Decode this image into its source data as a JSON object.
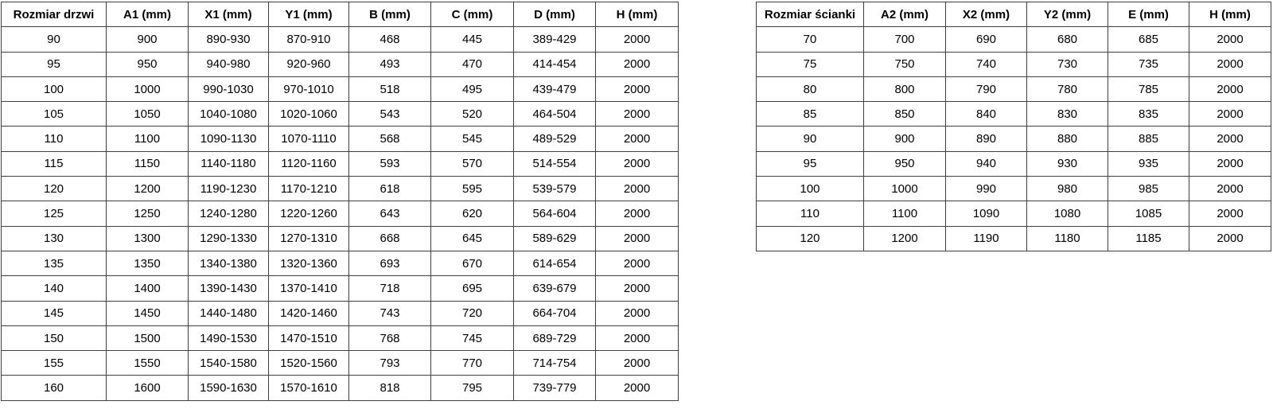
{
  "page": {
    "background_color": "#ffffff",
    "text_color": "#000000",
    "border_color": "#3f3f3f"
  },
  "door_table": {
    "headers": [
      "Rozmiar drzwi",
      "A1 (mm)",
      "X1 (mm)",
      "Y1 (mm)",
      "B (mm)",
      "C (mm)",
      "D (mm)",
      "H (mm)"
    ],
    "rows": [
      [
        "90",
        "900",
        "890-930",
        "870-910",
        "468",
        "445",
        "389-429",
        "2000"
      ],
      [
        "95",
        "950",
        "940-980",
        "920-960",
        "493",
        "470",
        "414-454",
        "2000"
      ],
      [
        "100",
        "1000",
        "990-1030",
        "970-1010",
        "518",
        "495",
        "439-479",
        "2000"
      ],
      [
        "105",
        "1050",
        "1040-1080",
        "1020-1060",
        "543",
        "520",
        "464-504",
        "2000"
      ],
      [
        "110",
        "1100",
        "1090-1130",
        "1070-1110",
        "568",
        "545",
        "489-529",
        "2000"
      ],
      [
        "115",
        "1150",
        "1140-1180",
        "1120-1160",
        "593",
        "570",
        "514-554",
        "2000"
      ],
      [
        "120",
        "1200",
        "1190-1230",
        "1170-1210",
        "618",
        "595",
        "539-579",
        "2000"
      ],
      [
        "125",
        "1250",
        "1240-1280",
        "1220-1260",
        "643",
        "620",
        "564-604",
        "2000"
      ],
      [
        "130",
        "1300",
        "1290-1330",
        "1270-1310",
        "668",
        "645",
        "589-629",
        "2000"
      ],
      [
        "135",
        "1350",
        "1340-1380",
        "1320-1360",
        "693",
        "670",
        "614-654",
        "2000"
      ],
      [
        "140",
        "1400",
        "1390-1430",
        "1370-1410",
        "718",
        "695",
        "639-679",
        "2000"
      ],
      [
        "145",
        "1450",
        "1440-1480",
        "1420-1460",
        "743",
        "720",
        "664-704",
        "2000"
      ],
      [
        "150",
        "1500",
        "1490-1530",
        "1470-1510",
        "768",
        "745",
        "689-729",
        "2000"
      ],
      [
        "155",
        "1550",
        "1540-1580",
        "1520-1560",
        "793",
        "770",
        "714-754",
        "2000"
      ],
      [
        "160",
        "1600",
        "1590-1630",
        "1570-1610",
        "818",
        "795",
        "739-779",
        "2000"
      ]
    ]
  },
  "wall_table": {
    "headers": [
      "Rozmiar ścianki",
      "A2 (mm)",
      "X2 (mm)",
      "Y2 (mm)",
      "E (mm)",
      "H (mm)"
    ],
    "rows": [
      [
        "70",
        "700",
        "690",
        "680",
        "685",
        "2000"
      ],
      [
        "75",
        "750",
        "740",
        "730",
        "735",
        "2000"
      ],
      [
        "80",
        "800",
        "790",
        "780",
        "785",
        "2000"
      ],
      [
        "85",
        "850",
        "840",
        "830",
        "835",
        "2000"
      ],
      [
        "90",
        "900",
        "890",
        "880",
        "885",
        "2000"
      ],
      [
        "95",
        "950",
        "940",
        "930",
        "935",
        "2000"
      ],
      [
        "100",
        "1000",
        "990",
        "980",
        "985",
        "2000"
      ],
      [
        "110",
        "1100",
        "1090",
        "1080",
        "1085",
        "2000"
      ],
      [
        "120",
        "1200",
        "1190",
        "1180",
        "1185",
        "2000"
      ]
    ]
  }
}
